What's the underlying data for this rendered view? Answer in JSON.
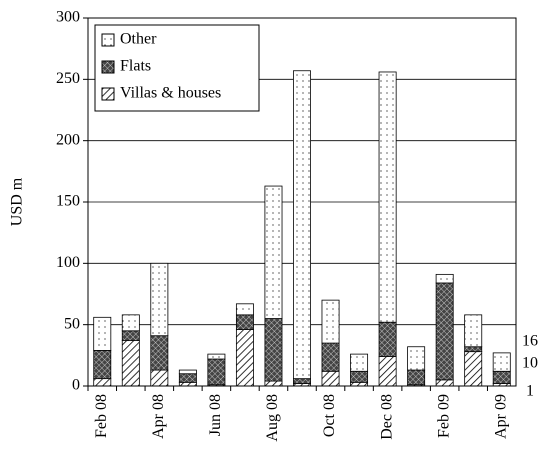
{
  "chart_data": {
    "type": "stacked_bar",
    "y_label": "USD m",
    "categories": [
      "Feb 08",
      null,
      "Apr 08",
      null,
      "Jun 08",
      null,
      "Aug 08",
      null,
      "Oct 08",
      null,
      "Dec 08",
      null,
      "Feb 09",
      null,
      "Apr 09"
    ],
    "series": [
      {
        "name": "Villas & houses",
        "color": "#000000",
        "pattern": "diagonal",
        "values": [
          6,
          37,
          13,
          3,
          1,
          46,
          4,
          2,
          12,
          3,
          24,
          1,
          5,
          28,
          2
        ]
      },
      {
        "name": "Flats",
        "color": "#555555",
        "pattern": "crosshatch",
        "values": [
          23,
          8,
          28,
          7,
          21,
          12,
          51,
          4,
          23,
          9,
          28,
          12,
          79,
          4,
          10
        ]
      },
      {
        "name": "Other",
        "color": "#ffffff",
        "pattern": "dots",
        "values": [
          27,
          13,
          59,
          3,
          4,
          9,
          108,
          251,
          35,
          14,
          204,
          19,
          7,
          26,
          15
        ]
      }
    ],
    "ylim": [
      0,
      300
    ],
    "yticks": [
      0,
      50,
      100,
      150,
      200,
      250,
      300
    ],
    "grid": true,
    "legend": "top-left",
    "annotations": [
      "16",
      "10",
      "1"
    ]
  }
}
